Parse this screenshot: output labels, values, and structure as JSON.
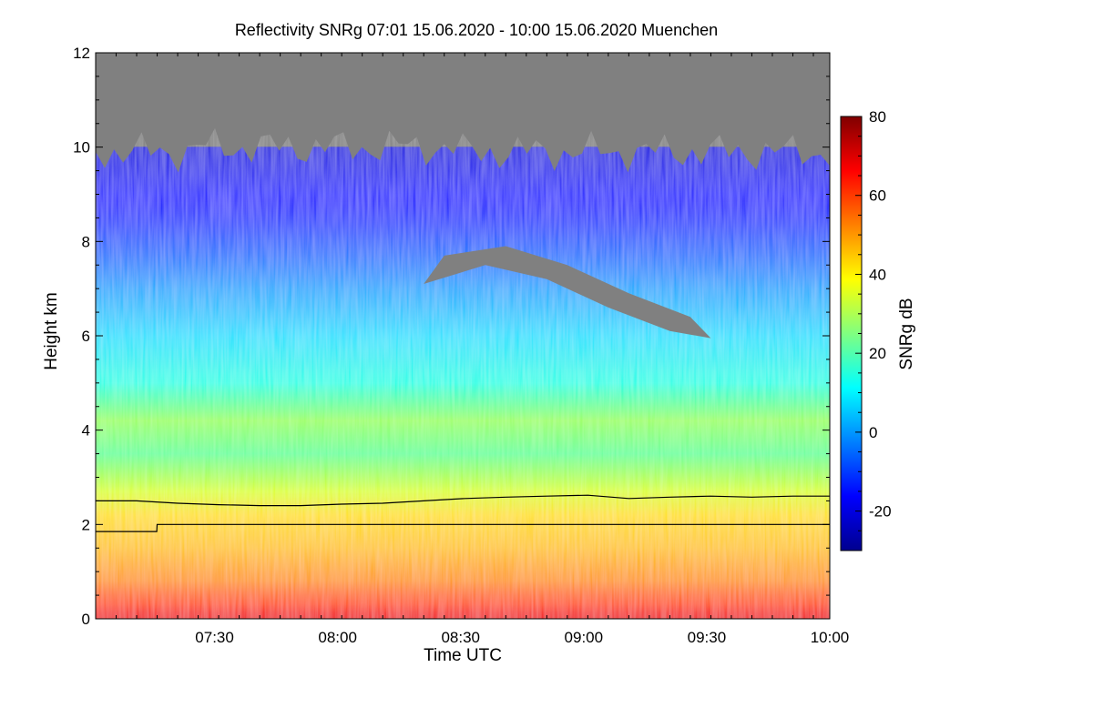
{
  "chart_data": {
    "type": "heatmap",
    "title": "Reflectivity SNRg   07:01 15.06.2020 - 10:00 15.06.2020 Muenchen",
    "xlabel": "Time UTC",
    "ylabel": "Height km",
    "x_range": [
      "07:01",
      "10:00"
    ],
    "x_tick_labels": [
      "07:30",
      "08:00",
      "08:30",
      "09:00",
      "09:30",
      "10:00"
    ],
    "ylim": [
      0,
      12
    ],
    "y_tick_labels": [
      "0",
      "2",
      "4",
      "6",
      "8",
      "10",
      "12"
    ],
    "colorbar": {
      "label": "SNRg dB",
      "range": [
        -30,
        80
      ],
      "tick_labels": [
        "-20",
        "0",
        "20",
        "40",
        "60",
        "80"
      ],
      "colors": [
        "#00008f",
        "#0000ff",
        "#0080ff",
        "#00ffff",
        "#80ff80",
        "#ffff00",
        "#ff8000",
        "#ff0000",
        "#800000"
      ]
    },
    "no_signal_color": "#808080",
    "lines": [
      {
        "x_minutes": [
          0,
          10,
          20,
          30,
          40,
          50,
          60,
          70,
          80,
          90,
          100,
          110,
          120,
          130,
          140,
          150,
          160,
          170,
          179
        ],
        "height_km": [
          2.5,
          2.5,
          2.45,
          2.42,
          2.4,
          2.4,
          2.43,
          2.45,
          2.5,
          2.55,
          2.58,
          2.6,
          2.62,
          2.55,
          2.58,
          2.6,
          2.58,
          2.6,
          2.6
        ]
      },
      {
        "x_minutes": [
          0,
          14.9,
          15,
          179
        ],
        "height_km": [
          1.85,
          1.85,
          2.0,
          2.0
        ]
      }
    ],
    "snr_profile": {
      "height_km": [
        0,
        0.3,
        0.8,
        1.5,
        2.2,
        2.7,
        3.5,
        4.2,
        5.0,
        6.0,
        7.0,
        8.0,
        9.0,
        10.0
      ],
      "snr_db": [
        68,
        58,
        50,
        45,
        42,
        35,
        22,
        28,
        14,
        8,
        2,
        -6,
        -16,
        -20
      ]
    }
  }
}
